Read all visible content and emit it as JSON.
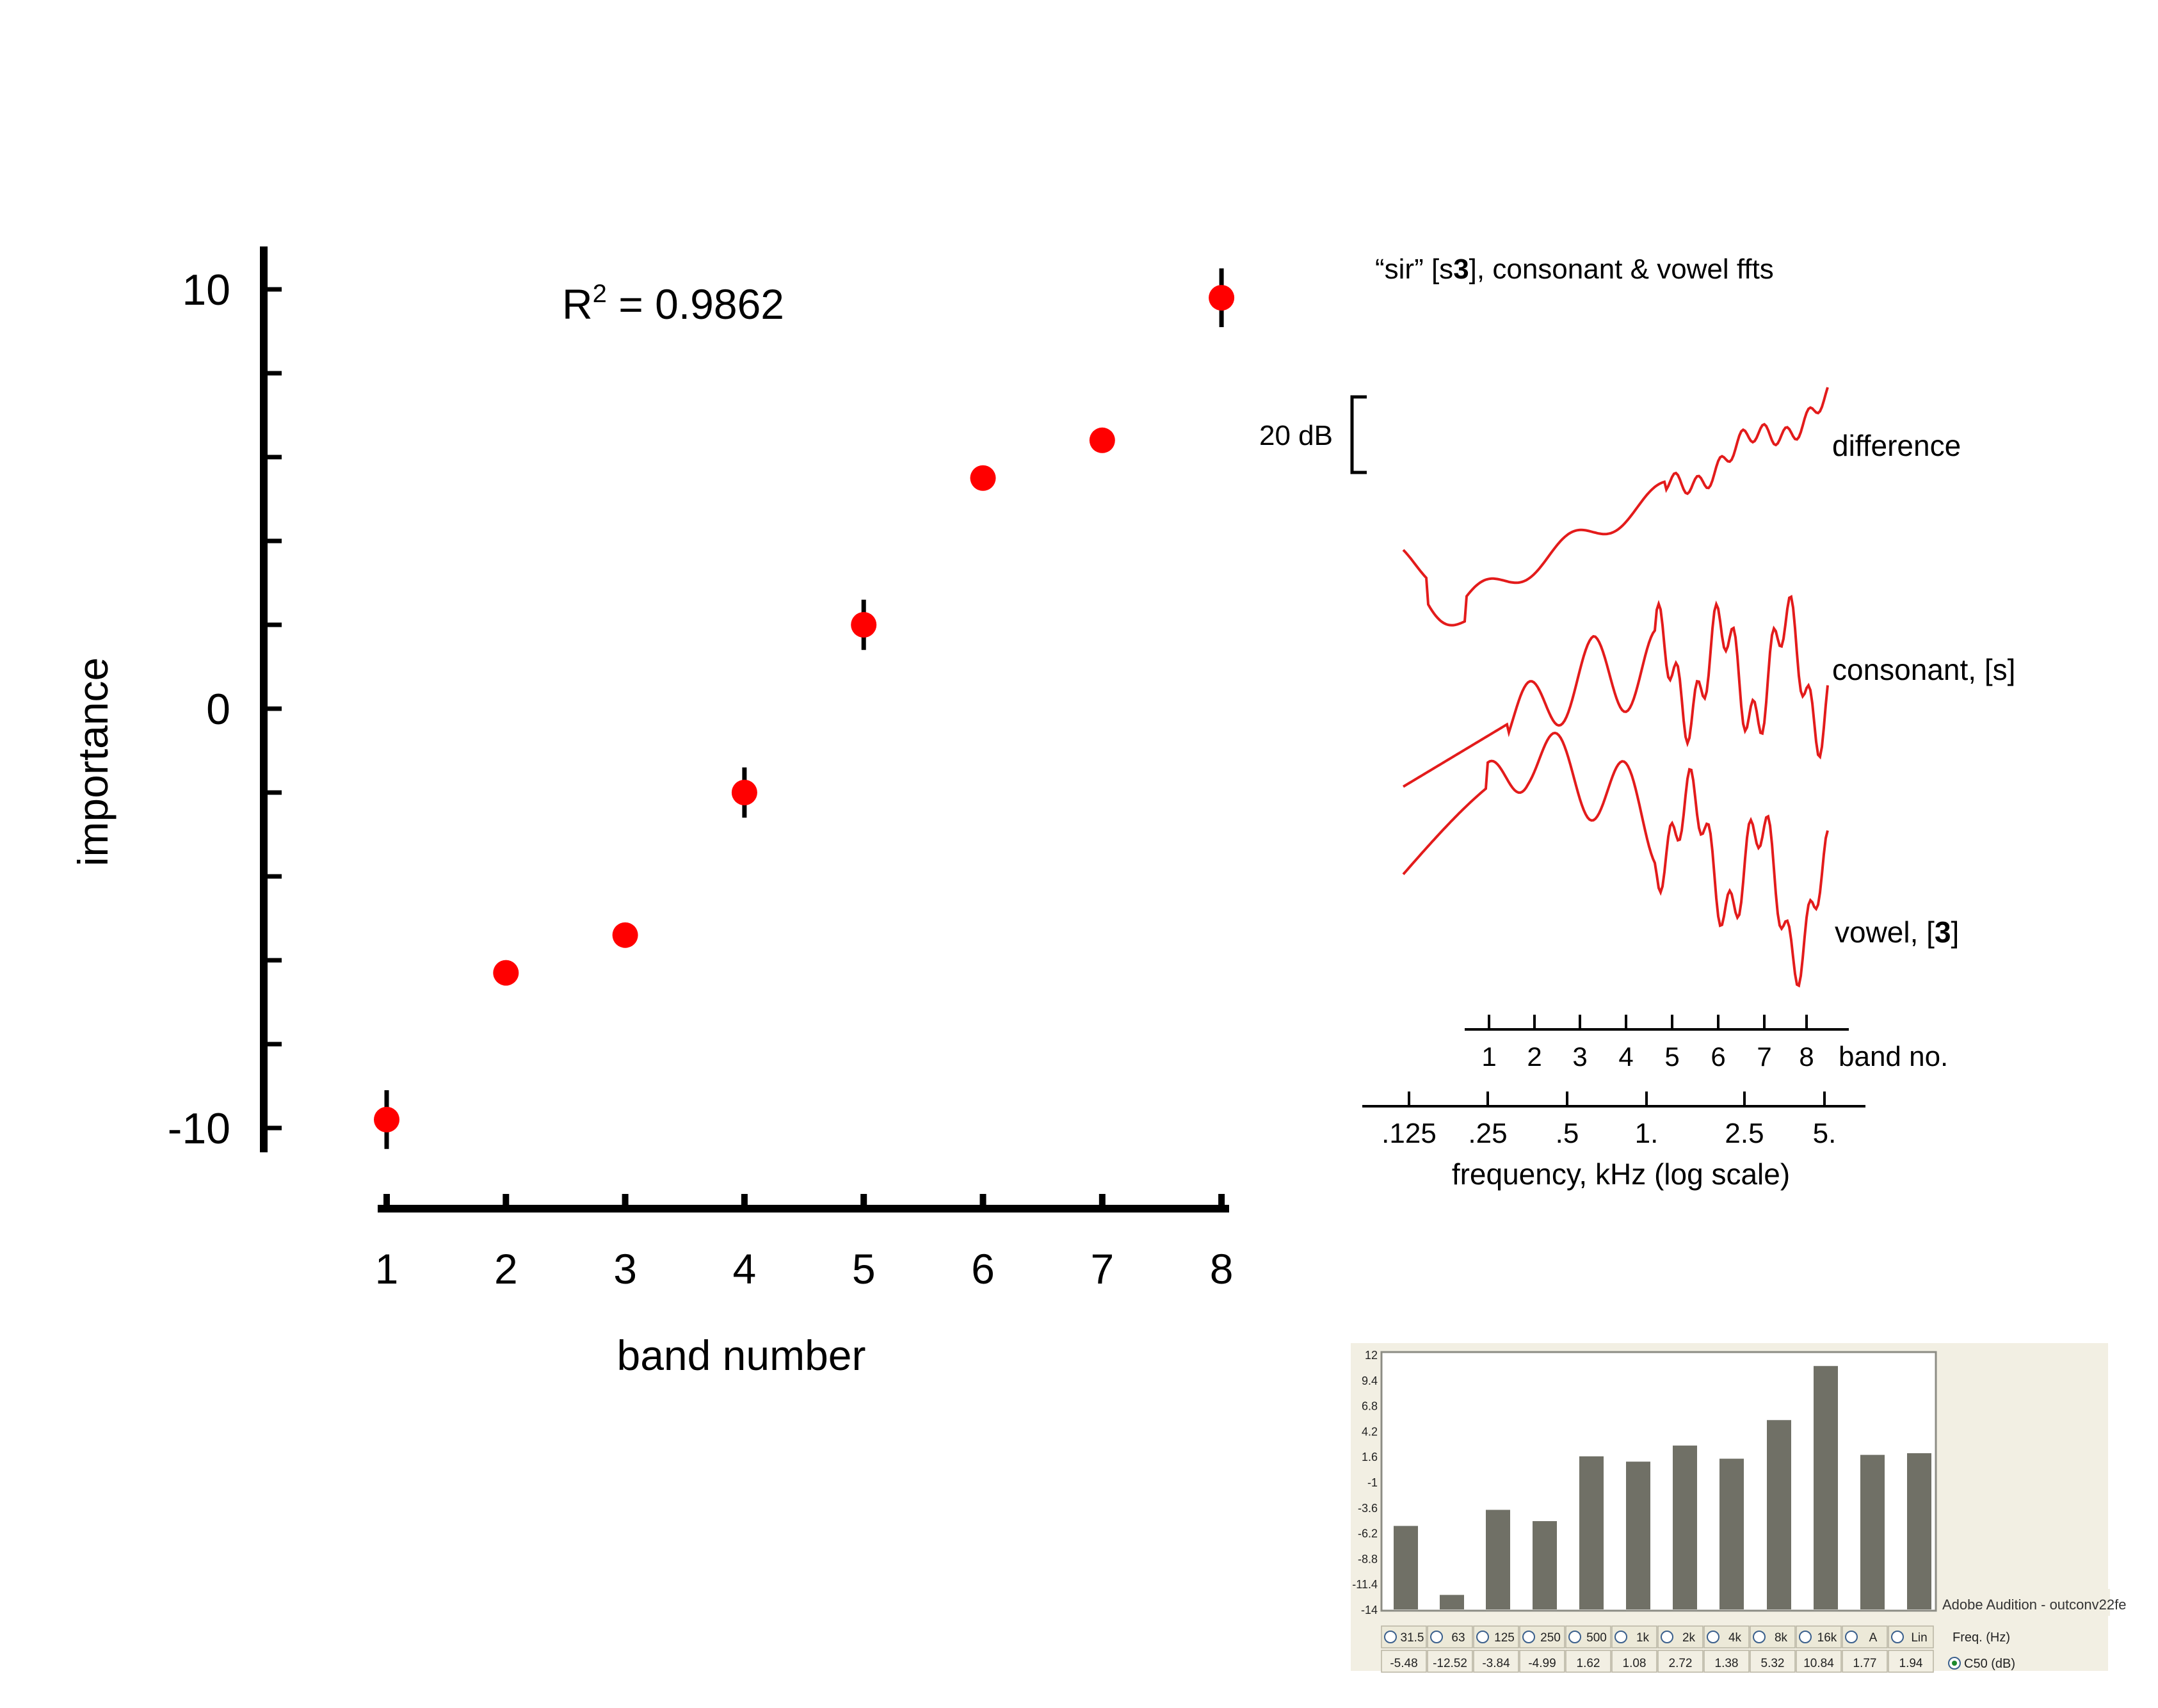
{
  "chart_data": [
    {
      "type": "scatter",
      "title": "",
      "annotation_prefix": "R",
      "annotation_sup": "2",
      "annotation_value": " = 0.9862",
      "xlabel": "band number",
      "ylabel": "importance",
      "xlim": [
        1,
        8
      ],
      "ylim": [
        -10.5,
        11
      ],
      "x_ticks": [
        "1",
        "2",
        "3",
        "4",
        "5",
        "6",
        "7",
        "8"
      ],
      "y_tick_labels": [
        {
          "value": 10,
          "label": "10"
        },
        {
          "value": 0,
          "label": "0"
        },
        {
          "value": -10,
          "label": "-10"
        }
      ],
      "y_minor_ticks": [
        -10,
        -8,
        -6,
        -4,
        -2,
        0,
        2,
        4,
        6,
        8,
        10
      ],
      "marker_color": "#ff0000",
      "error_color": "#000000",
      "grid": false,
      "points": [
        {
          "x": 1,
          "y": -9.8,
          "err": 0.7
        },
        {
          "x": 2,
          "y": -6.3,
          "err": 0
        },
        {
          "x": 3,
          "y": -5.4,
          "err": 0
        },
        {
          "x": 4,
          "y": -2.0,
          "err": 0.6
        },
        {
          "x": 5,
          "y": 2.0,
          "err": 0.6
        },
        {
          "x": 6,
          "y": 5.5,
          "err": 0
        },
        {
          "x": 7,
          "y": 6.4,
          "err": 0
        },
        {
          "x": 8,
          "y": 9.8,
          "err": 0.7
        }
      ]
    },
    {
      "type": "line",
      "title_pre": "“sir” [s",
      "title_bold": "3",
      "title_post": "], consonant & vowel ffts",
      "scale_bar_label": "20 dB",
      "line_color": "#e31b1b",
      "series": [
        {
          "name": "difference",
          "name_bold": ""
        },
        {
          "name": "consonant, [s]",
          "name_bold": ""
        },
        {
          "name": "vowel, [",
          "name_bold": "3",
          "name_post": "]"
        }
      ],
      "band_axis": {
        "label": "band no.",
        "ticks": [
          "1",
          "2",
          "3",
          "4",
          "5",
          "6",
          "7",
          "8"
        ]
      },
      "freq_axis": {
        "label": "frequency, kHz (log scale)",
        "ticks": [
          ".125",
          ".25",
          ".5",
          "1.",
          "2.5",
          "5."
        ]
      }
    },
    {
      "type": "bar",
      "bar_color": "#707066",
      "panel_bg": "#f2efe3",
      "window_caption": "Adobe Audition - outconv22fe",
      "y_tick_labels": [
        "12",
        "9.4",
        "6.8",
        "4.2",
        "1.6",
        "-1",
        "-3.6",
        "-6.2",
        "-8.8",
        "-11.4",
        "-14"
      ],
      "ylim": [
        -14,
        12
      ],
      "categories": [
        "31.5",
        "63",
        "125",
        "250",
        "500",
        "1k",
        "2k",
        "4k",
        "8k",
        "16k",
        "A",
        "Lin"
      ],
      "values": [
        -5.48,
        -12.52,
        -3.84,
        -4.99,
        1.62,
        1.08,
        2.72,
        1.38,
        5.32,
        10.84,
        1.77,
        1.94
      ],
      "value_labels": [
        "-5.48",
        "-12.52",
        "-3.84",
        "-4.99",
        "1.62",
        "1.08",
        "2.72",
        "1.38",
        "5.32",
        "10.84",
        "1.77",
        "1.94"
      ],
      "row1_right_label": "Freq. (Hz)",
      "row2_right_label": "C50 (dB)"
    }
  ]
}
